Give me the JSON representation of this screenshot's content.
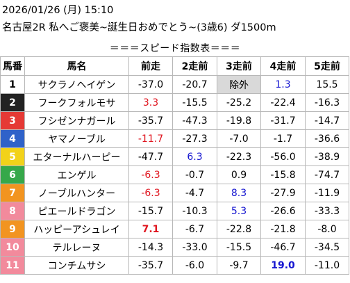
{
  "header": {
    "line1": "2026/01/26 (月) 15:10",
    "line2": "名古屋2R 私へご褒美~誕生日おめでとう~(3歳6) ダ1500m",
    "title": "＝＝＝スピード指数表＝＝＝"
  },
  "colors": {
    "red_text": "#e0141e",
    "blue_text": "#1515d0",
    "grey_bg": "#d9d9d9",
    "accent_line": "#e0141e"
  },
  "columns": [
    "馬番",
    "馬名",
    "前走",
    "2走前",
    "3走前",
    "4走前",
    "5走前"
  ],
  "rows": [
    {
      "num": "1",
      "num_bg": "#ffffff",
      "num_fg": "#000000",
      "name": "サクラノヘイゲン",
      "cells": [
        {
          "v": "-37.0",
          "c": "normal"
        },
        {
          "v": "-20.7",
          "c": "normal"
        },
        {
          "v": "除外",
          "c": "grey"
        },
        {
          "v": "1.3",
          "c": "blue"
        },
        {
          "v": "15.5",
          "c": "normal"
        }
      ]
    },
    {
      "num": "2",
      "num_bg": "#222222",
      "num_fg": "#ffffff",
      "name": "フークフォルモサ",
      "cells": [
        {
          "v": "3.3",
          "c": "red"
        },
        {
          "v": "-15.5",
          "c": "normal"
        },
        {
          "v": "-25.2",
          "c": "normal"
        },
        {
          "v": "-22.4",
          "c": "normal"
        },
        {
          "v": "-16.3",
          "c": "normal"
        }
      ]
    },
    {
      "num": "3",
      "num_bg": "#e53935",
      "num_fg": "#ffffff",
      "name": "フシゼンナガール",
      "cells": [
        {
          "v": "-35.7",
          "c": "normal"
        },
        {
          "v": "-47.3",
          "c": "normal"
        },
        {
          "v": "-19.8",
          "c": "normal"
        },
        {
          "v": "-31.7",
          "c": "normal"
        },
        {
          "v": "-14.7",
          "c": "normal"
        }
      ]
    },
    {
      "num": "4",
      "num_bg": "#2f62c9",
      "num_fg": "#ffffff",
      "name": "ヤマノーブル",
      "cells": [
        {
          "v": "-11.7",
          "c": "red"
        },
        {
          "v": "-27.3",
          "c": "normal"
        },
        {
          "v": "-7.0",
          "c": "normal"
        },
        {
          "v": "-1.7",
          "c": "normal"
        },
        {
          "v": "-36.6",
          "c": "normal"
        }
      ]
    },
    {
      "num": "5",
      "num_bg": "#f2d21a",
      "num_fg": "#ffffff",
      "name": "エターナルハーピー",
      "cells": [
        {
          "v": "-47.7",
          "c": "normal"
        },
        {
          "v": "6.3",
          "c": "blue"
        },
        {
          "v": "-22.3",
          "c": "normal"
        },
        {
          "v": "-56.0",
          "c": "normal"
        },
        {
          "v": "-38.9",
          "c": "normal"
        }
      ]
    },
    {
      "num": "6",
      "num_bg": "#36a84a",
      "num_fg": "#ffffff",
      "name": "エンゲル",
      "cells": [
        {
          "v": "-6.3",
          "c": "red"
        },
        {
          "v": "-0.7",
          "c": "normal"
        },
        {
          "v": "0.9",
          "c": "normal"
        },
        {
          "v": "-15.8",
          "c": "normal"
        },
        {
          "v": "-74.7",
          "c": "normal"
        }
      ]
    },
    {
      "num": "7",
      "num_bg": "#f29420",
      "num_fg": "#ffffff",
      "name": "ノーブルハンター",
      "cells": [
        {
          "v": "-6.3",
          "c": "red"
        },
        {
          "v": "-4.7",
          "c": "normal"
        },
        {
          "v": "8.3",
          "c": "blue"
        },
        {
          "v": "-27.9",
          "c": "normal"
        },
        {
          "v": "-11.9",
          "c": "normal"
        }
      ]
    },
    {
      "num": "8",
      "num_bg": "#f28a9c",
      "num_fg": "#ffffff",
      "name": "ピエールドラゴン",
      "cells": [
        {
          "v": "-15.7",
          "c": "normal"
        },
        {
          "v": "-10.3",
          "c": "normal"
        },
        {
          "v": "5.3",
          "c": "blue"
        },
        {
          "v": "-26.6",
          "c": "normal"
        },
        {
          "v": "-33.3",
          "c": "normal"
        }
      ]
    },
    {
      "num": "9",
      "num_bg": "#f29420",
      "num_fg": "#ffffff",
      "name": "ハッピーアシュレイ",
      "cells": [
        {
          "v": "7.1",
          "c": "red-bold"
        },
        {
          "v": "-6.7",
          "c": "normal"
        },
        {
          "v": "-22.8",
          "c": "normal"
        },
        {
          "v": "-21.8",
          "c": "normal"
        },
        {
          "v": "-8.0",
          "c": "normal"
        }
      ]
    },
    {
      "num": "10",
      "num_bg": "#f28a9c",
      "num_fg": "#ffffff",
      "name": "テルレーヌ",
      "cells": [
        {
          "v": "-14.3",
          "c": "normal"
        },
        {
          "v": "-33.0",
          "c": "normal"
        },
        {
          "v": "-15.5",
          "c": "normal"
        },
        {
          "v": "-46.7",
          "c": "normal"
        },
        {
          "v": "-34.5",
          "c": "normal"
        }
      ]
    },
    {
      "num": "11",
      "num_bg": "#f28a9c",
      "num_fg": "#ffffff",
      "name": "コンチムサシ",
      "cells": [
        {
          "v": "-35.7",
          "c": "normal"
        },
        {
          "v": "-6.0",
          "c": "normal"
        },
        {
          "v": "-9.7",
          "c": "normal"
        },
        {
          "v": "19.0",
          "c": "blue-bold"
        },
        {
          "v": "-11.0",
          "c": "normal"
        }
      ]
    }
  ]
}
